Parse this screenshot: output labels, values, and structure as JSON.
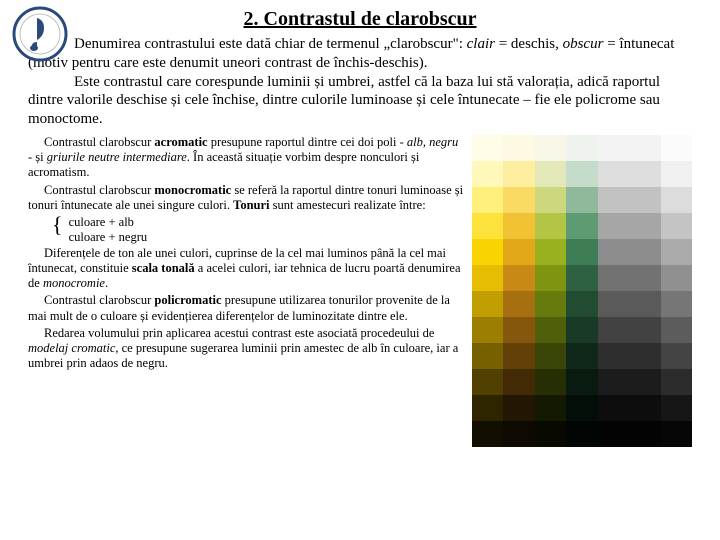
{
  "title": "2. Contrastul de clarobscur",
  "intro_html": "<span class=\"indent\"></span>Denumirea contrastului este dată chiar de termenul „clarobscur\": <em>clair</em> = deschis, <em>obscur</em> = întunecat (motiv pentru care este denumit uneori contrast de închis-deschis).<br><span class=\"indent\"></span>Este contrastul care corespunde luminii și umbrei, astfel că la baza lui stă valorația, adică raportul dintre valorile deschise și cele închise, dintre culorile luminoase și cele întunecate – fie ele policrome sau monoctome.",
  "paragraphs": [
    "Contrastul clarobscur <b>acromatic</b> presupune raportul dintre cei doi poli - <em>alb, negru</em> - și <em>griurile neutre intermediare</em>. În această situație vorbim despre nonculori și acromatism.",
    "Contrastul clarobscur <b>monocromatic</b> se referă la raportul dintre tonuri luminoase și tonuri întunecate ale unei singure culori. <b>Tonuri</b> sunt amestecuri realizate între:"
  ],
  "bullets": [
    "culoare + alb",
    "culoare + negru"
  ],
  "paragraphs2": [
    "Diferențele de ton ale unei culori, cuprinse de la cel mai luminos până la cel mai întunecat, constituie <b>scala tonală</b> a acelei culori, iar tehnica de lucru poartă denumirea de <em>monocromie</em>.",
    "Contrastul clarobscur <b>policromatic</b> presupune utilizarea tonurilor provenite de la mai mult de o culoare și evidențierea diferențelor de luminozitate dintre ele.",
    "Redarea volumului prin aplicarea acestui contrast este asociată procedeului de <em>modelaj cromatic</em>, ce presupune sugerarea luminii prin amestec de alb în culoare, iar a umbrei prin adaos de negru."
  ],
  "logo": {
    "ring_color": "#2a4a7a",
    "note_color": "#2a4a7a",
    "text_color": "#2a4a7a"
  },
  "color_grid": {
    "rows": 12,
    "cols": 7,
    "cells": [
      [
        "#fffde8",
        "#fef9e3",
        "#f8f6e6",
        "#eef3ed",
        "#f3f3f3",
        "#f3f3f3",
        "#fbfbfb"
      ],
      [
        "#fff8b8",
        "#fdeea0",
        "#e4e8b8",
        "#c6dccb",
        "#dedede",
        "#dedede",
        "#f0f0f0"
      ],
      [
        "#fef07a",
        "#f9da63",
        "#ccd77e",
        "#8fb99a",
        "#c2c2c2",
        "#c2c2c2",
        "#dcdcdc"
      ],
      [
        "#fee23c",
        "#f1c233",
        "#b2c545",
        "#5e9a72",
        "#a6a6a6",
        "#a6a6a6",
        "#c4c4c4"
      ],
      [
        "#f9d400",
        "#e3a81a",
        "#99b01f",
        "#3f7d57",
        "#8c8c8c",
        "#8c8c8c",
        "#aaaaaa"
      ],
      [
        "#e6bd00",
        "#c88a14",
        "#7f9411",
        "#2e6142",
        "#727272",
        "#727272",
        "#909090"
      ],
      [
        "#c29f00",
        "#a66f10",
        "#677a0d",
        "#224c32",
        "#5a5a5a",
        "#5a5a5a",
        "#767676"
      ],
      [
        "#9c7f00",
        "#84570c",
        "#50600a",
        "#183a26",
        "#424242",
        "#424242",
        "#5c5c5c"
      ],
      [
        "#766000",
        "#624008",
        "#3a4607",
        "#10281a",
        "#2e2e2e",
        "#2e2e2e",
        "#444444"
      ],
      [
        "#514100",
        "#412a05",
        "#262e04",
        "#091a10",
        "#1c1c1c",
        "#1c1c1c",
        "#2c2c2c"
      ],
      [
        "#2e2400",
        "#231603",
        "#141902",
        "#040e08",
        "#0d0d0d",
        "#0d0d0d",
        "#161616"
      ],
      [
        "#120e00",
        "#0e0901",
        "#080a01",
        "#010503",
        "#030303",
        "#030303",
        "#060606"
      ]
    ]
  }
}
